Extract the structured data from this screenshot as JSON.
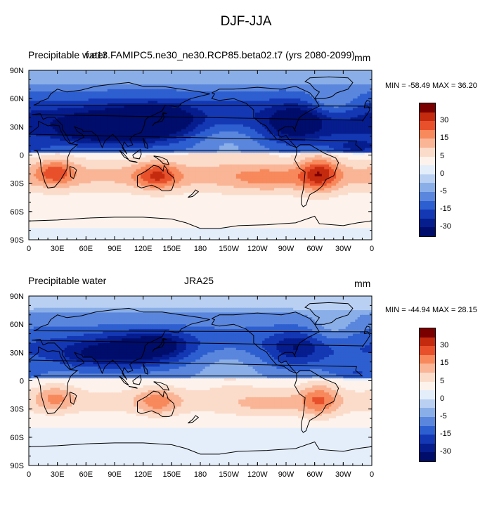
{
  "figure": {
    "title": "DJF-JJA"
  },
  "panels": [
    {
      "left_title": "Precipitable water",
      "center_title": "f.e13.FAMIPC5.ne30_ne30.RCP85.beta02.t7 (yrs 2080-2099)",
      "units": "mm",
      "min_max": "MIN = -58.49 MAX =  36.20"
    },
    {
      "left_title": "Precipitable water",
      "center_title": "JRA25",
      "units": "mm",
      "min_max": "MIN = -44.94 MAX =  28.15"
    }
  ],
  "colorbar": {
    "labels": [
      "30",
      "15",
      "5",
      "0",
      "-5",
      "-15",
      "-30"
    ],
    "colors": [
      "#7a0000",
      "#c42a0e",
      "#e8502b",
      "#f7895c",
      "#f9b596",
      "#fbdccb",
      "#fdf3ec",
      "#e4eefb",
      "#b9d0f3",
      "#8aafe8",
      "#5a86dd",
      "#2e5fd0",
      "#1438b4",
      "#061d8e",
      "#000d6b"
    ]
  },
  "chart_data": [
    {
      "type": "heatmap",
      "title": "DJF-JJA",
      "subtitle": "f.e13.FAMIPC5.ne30_ne30.RCP85.beta02.t7 (yrs 2080-2099)",
      "variable": "Precipitable water",
      "units": "mm",
      "min": -58.49,
      "max": 36.2,
      "x_ticks": [
        "0",
        "30E",
        "60E",
        "90E",
        "120E",
        "150E",
        "180",
        "150W",
        "120W",
        "90W",
        "60W",
        "30W",
        "0"
      ],
      "y_ticks": [
        "90N",
        "60N",
        "30N",
        "0",
        "30S",
        "60S",
        "90S"
      ],
      "xlim": [
        0,
        360
      ],
      "ylim": [
        -90,
        90
      ],
      "contour_levels": [
        -35,
        -30,
        -25,
        -20,
        -15,
        -10,
        -5,
        0,
        5,
        10,
        15,
        20,
        25,
        30,
        35
      ]
    },
    {
      "type": "heatmap",
      "title": "DJF-JJA",
      "subtitle": "JRA25",
      "variable": "Precipitable water",
      "units": "mm",
      "min": -44.94,
      "max": 28.15,
      "x_ticks": [
        "0",
        "30E",
        "60E",
        "90E",
        "120E",
        "150E",
        "180",
        "150W",
        "120W",
        "90W",
        "60W",
        "30W",
        "0"
      ],
      "y_ticks": [
        "90N",
        "60N",
        "30N",
        "0",
        "30S",
        "60S",
        "90S"
      ],
      "xlim": [
        0,
        360
      ],
      "ylim": [
        -90,
        90
      ],
      "contour_levels": [
        -35,
        -30,
        -25,
        -20,
        -15,
        -10,
        -5,
        0,
        5,
        10,
        15,
        20,
        25,
        30,
        35
      ]
    }
  ]
}
